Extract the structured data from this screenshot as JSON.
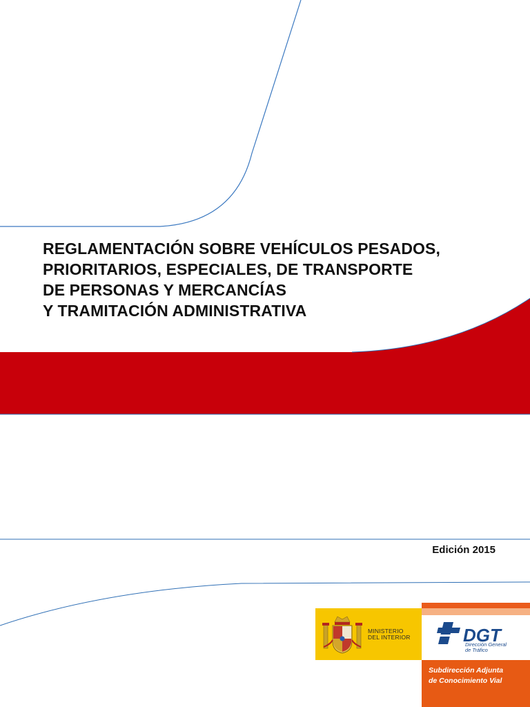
{
  "document": {
    "title_lines": [
      "REGLAMENTACIÓN SOBRE VEHÍCULOS PESADOS,",
      "PRIORITARIOS, ESPECIALES, DE TRANSPORTE",
      "DE PERSONAS Y MERCANCÍAS",
      "Y TRAMITACIÓN ADMINISTRATIVA"
    ],
    "edition": "Edición 2015"
  },
  "ministry_logo": {
    "line1": "MINISTERIO",
    "line2": "DEL INTERIOR",
    "icon": "coat-of-arms-icon"
  },
  "dgt_logo": {
    "brand": "DGT",
    "subtitle_line1": "Dirección General",
    "subtitle_line2": "de Tráfico",
    "department_line1": "Subdirección Adjunta",
    "department_line2": "de Conocimiento Vial",
    "icon": "dgt-cross-icon"
  },
  "colors": {
    "accent_red": "#c8000a",
    "line_blue": "#2f6fb5",
    "ministry_yellow": "#f7c600",
    "dgt_orange": "#e75a14",
    "dgt_blue": "#1b4a8c"
  }
}
